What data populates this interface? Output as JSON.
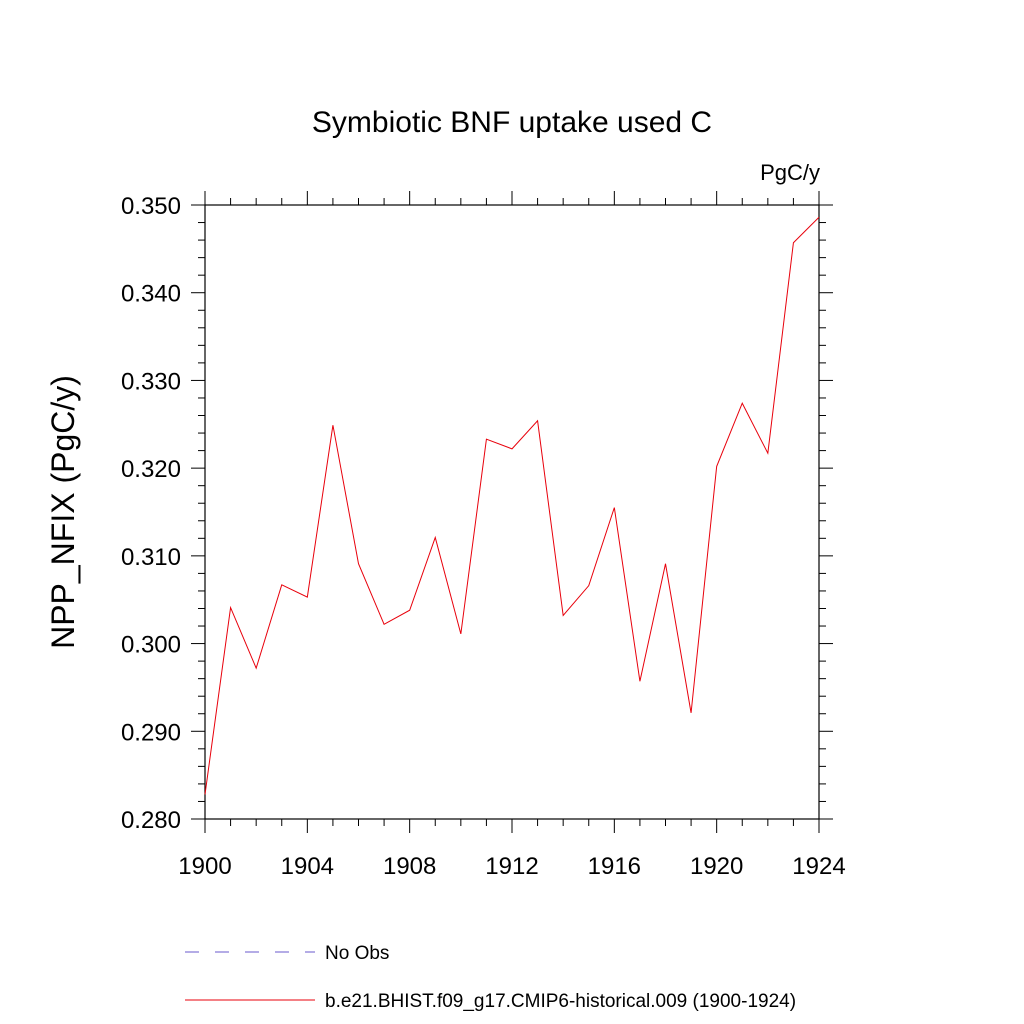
{
  "chart_data": {
    "type": "line",
    "title": "Symbiotic BNF uptake used C",
    "units_label": "PgC/y",
    "ylabel": "NPP_NFIX  (PgC/y)",
    "xlabel": "",
    "xlim": [
      1900,
      1924
    ],
    "ylim": [
      0.28,
      0.35
    ],
    "x_ticks": [
      1900,
      1904,
      1908,
      1912,
      1916,
      1920,
      1924
    ],
    "x_tick_labels": [
      "1900",
      "1904",
      "1908",
      "1912",
      "1916",
      "1920",
      "1924"
    ],
    "y_ticks": [
      0.28,
      0.29,
      0.3,
      0.31,
      0.32,
      0.33,
      0.34,
      0.35
    ],
    "y_tick_labels": [
      "0.280",
      "0.290",
      "0.300",
      "0.310",
      "0.320",
      "0.330",
      "0.340",
      "0.350"
    ],
    "grid": false,
    "legend_position": "bottom",
    "series": [
      {
        "name": "b.e21.BHIST.f09_g17.CMIP6-historical.009 (1900-1924)",
        "color": "#e8000b",
        "dash": "solid",
        "x": [
          1900,
          1901,
          1902,
          1903,
          1904,
          1905,
          1906,
          1907,
          1908,
          1909,
          1910,
          1911,
          1912,
          1913,
          1914,
          1915,
          1916,
          1917,
          1918,
          1919,
          1920,
          1921,
          1922,
          1923,
          1924
        ],
        "y": [
          0.2828,
          0.3041,
          0.2972,
          0.3067,
          0.3053,
          0.3249,
          0.3091,
          0.3022,
          0.3038,
          0.3121,
          0.3011,
          0.3233,
          0.3222,
          0.3254,
          0.3032,
          0.3066,
          0.3155,
          0.2957,
          0.3091,
          0.2921,
          0.3202,
          0.3274,
          0.3217,
          0.3457,
          0.3486
        ]
      }
    ],
    "legend": [
      {
        "label": "No Obs",
        "color": "#6a5acd",
        "dash": "dashed"
      },
      {
        "label": "b.e21.BHIST.f09_g17.CMIP6-historical.009 (1900-1924)",
        "color": "#e8000b",
        "dash": "solid"
      }
    ]
  }
}
